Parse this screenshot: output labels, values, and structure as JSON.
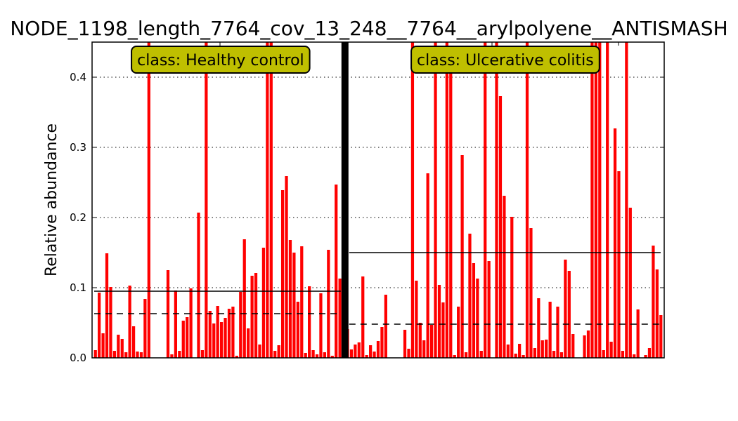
{
  "chart_data": {
    "type": "bar",
    "title": "NODE_1198_length_7764_cov_13_248__7764__arylpolyene__ANTISMASH",
    "xlabel": "",
    "ylabel": "Relative abundance",
    "ylim": [
      0,
      0.45
    ],
    "yticks": [
      0.0,
      0.1,
      0.2,
      0.3,
      0.4
    ],
    "ytick_labels": [
      "0.0",
      "0.1",
      "0.2",
      "0.3",
      "0.4"
    ],
    "grid": "horizontal-dotted",
    "bar_color": "#ff0000",
    "class_box_color": "#bfbf00",
    "classes": [
      {
        "label": "class: Healthy control",
        "mean": 0.095,
        "median": 0.063,
        "values": [
          0.011,
          0.093,
          0.035,
          0.149,
          0.101,
          0.01,
          0.033,
          0.027,
          0.008,
          0.103,
          0.045,
          0.009,
          0.008,
          0.084,
          0.45,
          0,
          0,
          0,
          0,
          0.125,
          0.005,
          0.096,
          0.01,
          0.053,
          0.058,
          0.099,
          0,
          0.207,
          0.011,
          0.45,
          0.067,
          0.049,
          0.074,
          0.051,
          0.057,
          0.07,
          0.073,
          0.003,
          0.094,
          0.169,
          0.042,
          0.117,
          0.121,
          0.019,
          0.157,
          0.45,
          0.45,
          0.01,
          0.018,
          0.239,
          0.259,
          0.168,
          0.15,
          0.08,
          0.159,
          0.007,
          0.102,
          0.011,
          0.005,
          0.092,
          0.008,
          0.154,
          0.003,
          0.247,
          0.113,
          0.007
        ]
      },
      {
        "label": "class: Ulcerative colitis",
        "mean": 0.15,
        "median": 0.048,
        "values": [
          0.041,
          0.012,
          0.019,
          0.022,
          0.116,
          0.004,
          0.018,
          0.009,
          0.024,
          0.044,
          0.09,
          0,
          0,
          0,
          0,
          0.04,
          0.013,
          0.45,
          0.11,
          0.05,
          0.025,
          0.263,
          0.047,
          0.45,
          0.104,
          0.079,
          0.45,
          0.445,
          0.004,
          0.073,
          0.289,
          0.008,
          0.177,
          0.135,
          0.113,
          0.01,
          0.45,
          0.138,
          0,
          0.45,
          0.373,
          0.231,
          0.019,
          0.201,
          0.006,
          0.02,
          0.004,
          0.45,
          0.185,
          0.014,
          0.085,
          0.025,
          0.026,
          0.08,
          0.01,
          0.073,
          0.008,
          0.14,
          0.124,
          0.034,
          0,
          0,
          0.032,
          0.039,
          0.45,
          0.45,
          0.45,
          0.011,
          0.45,
          0.023,
          0.327,
          0.266,
          0.01,
          0.45,
          0.214,
          0.005,
          0.069,
          0,
          0.004,
          0.014,
          0.16,
          0.126,
          0.061
        ]
      }
    ]
  }
}
